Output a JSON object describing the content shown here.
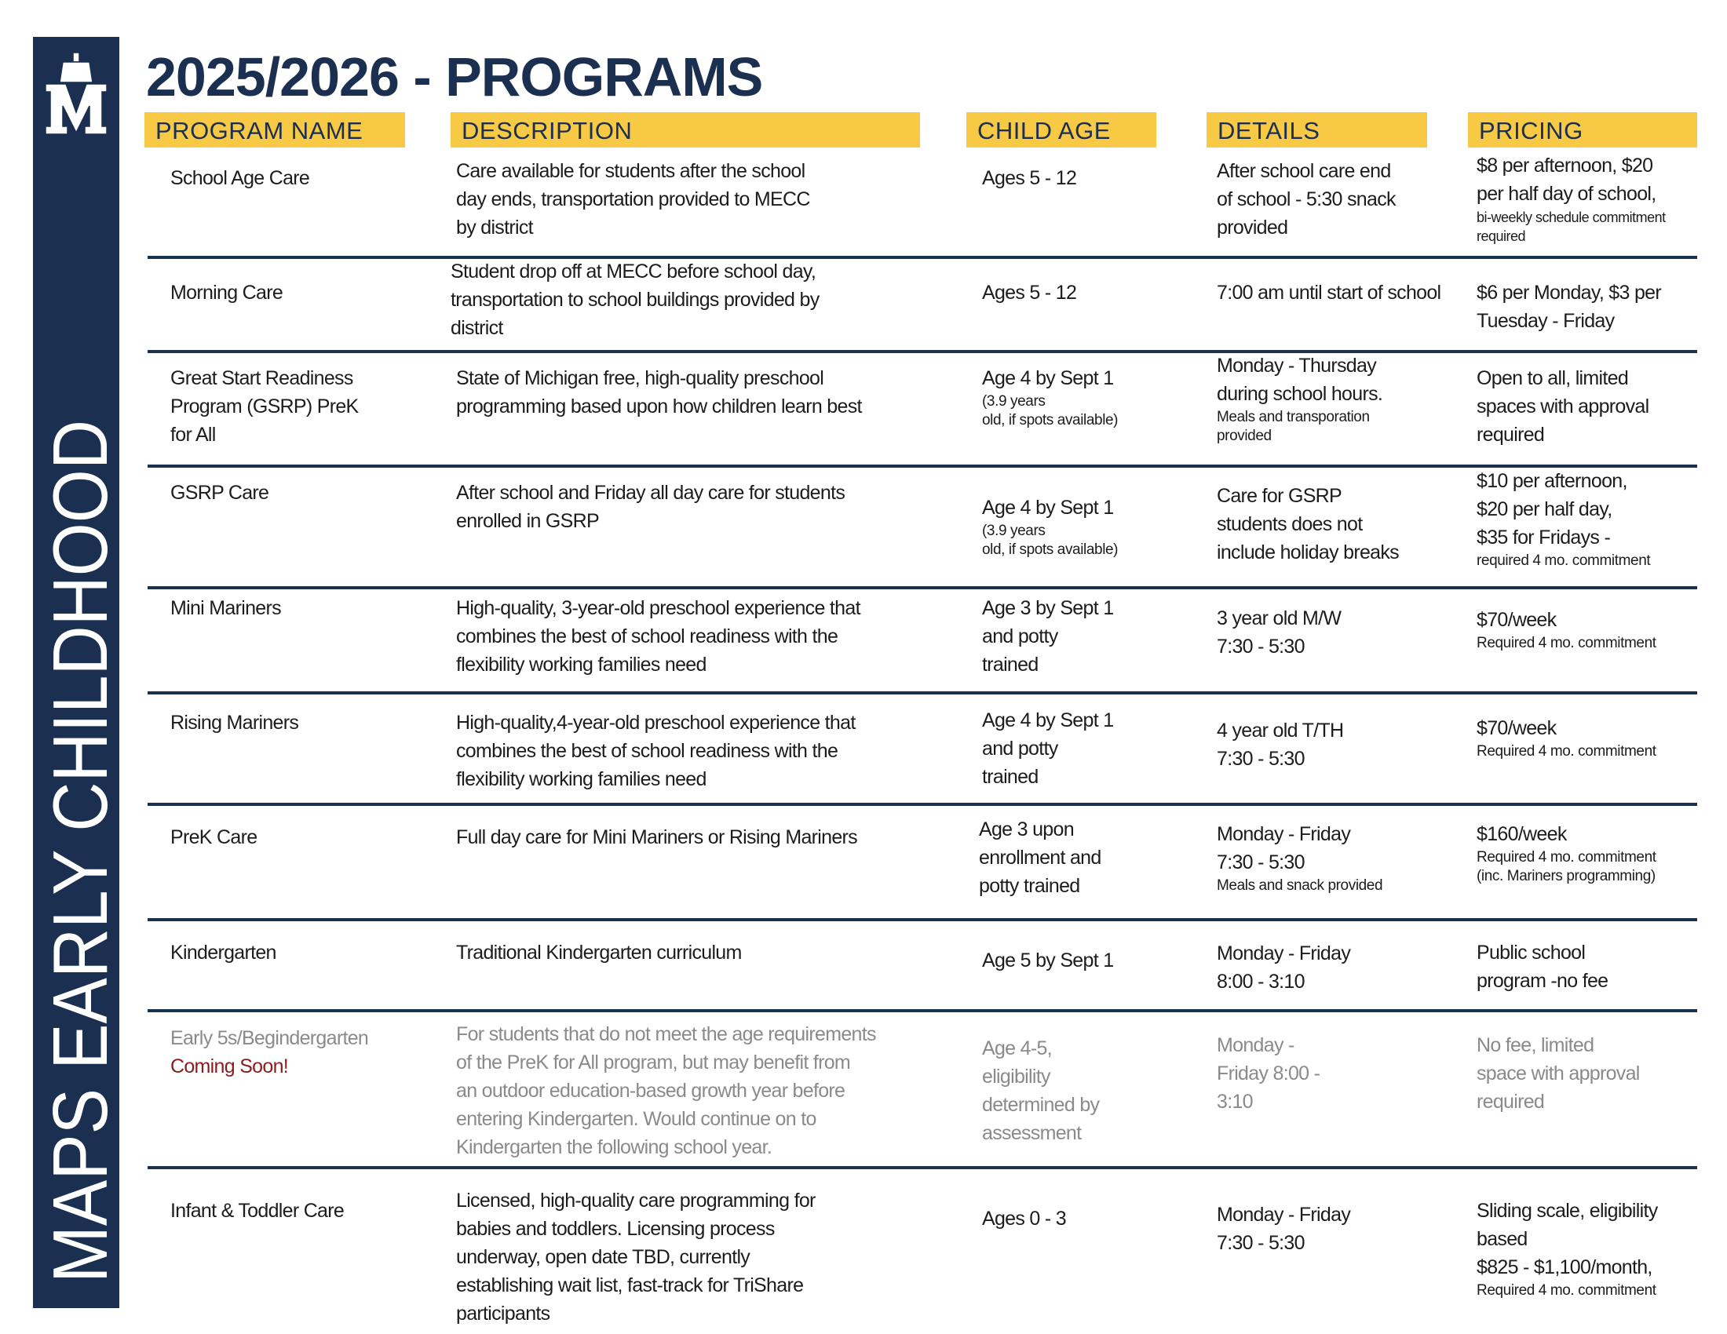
{
  "sidebar": {
    "vertical_title": "MAPS EARLY CHILDHOOD",
    "logo": "maps-mariners-m-ship-logo"
  },
  "title": "2025/2026 - PROGRAMS",
  "headers": [
    "PROGRAM NAME",
    "DESCRIPTION",
    "CHILD AGE",
    "DETAILS",
    "PRICING"
  ],
  "colors": {
    "navy": "#1b2f51",
    "gold": "#f8c945",
    "muted": "#8a8a8a",
    "coming_soon": "#8a1c1c"
  },
  "rows": [
    {
      "name": {
        "lines": [
          "School Age Care"
        ]
      },
      "desc": {
        "lines": [
          "Care available for students after the school",
          "day ends, transportation provided to MECC",
          "by district"
        ]
      },
      "age": {
        "lines": [
          "Ages 5 - 12"
        ]
      },
      "details": {
        "lines": [
          "After school care end",
          "of school - 5:30 snack",
          "provided"
        ]
      },
      "pricing": {
        "lines": [
          "$8 per afternoon, $20",
          "per half day of school,"
        ],
        "small": [
          "bi-weekly schedule commitment",
          "required"
        ]
      }
    },
    {
      "name": {
        "lines": [
          "Morning Care"
        ]
      },
      "desc": {
        "lines": [
          "Student drop off at MECC before school day,",
          "transportation to school buildings provided by",
          "district"
        ]
      },
      "age": {
        "lines": [
          "Ages 5 - 12"
        ]
      },
      "details": {
        "lines": [
          "7:00 am until start of school"
        ]
      },
      "pricing": {
        "lines": [
          "$6 per Monday, $3 per",
          "Tuesday - Friday"
        ]
      }
    },
    {
      "name": {
        "lines": [
          "Great Start Readiness",
          "Program (GSRP) PreK",
          "for All"
        ]
      },
      "desc": {
        "lines": [
          "State of Michigan free, high-quality preschool",
          "programming based upon how children learn best"
        ]
      },
      "age": {
        "lines": [
          "Age 4 by Sept 1"
        ],
        "small": [
          "(3.9 years",
          "old, if spots available)"
        ]
      },
      "details": {
        "lines": [
          "Monday - Thursday",
          "during school hours."
        ],
        "small": [
          "Meals and transporation",
          "provided"
        ]
      },
      "pricing": {
        "lines": [
          "Open to all, limited",
          "spaces with approval",
          "required"
        ]
      }
    },
    {
      "name": {
        "lines": [
          "GSRP Care"
        ]
      },
      "desc": {
        "lines": [
          "After school and Friday all day care for students",
          "enrolled in GSRP"
        ]
      },
      "age": {
        "lines": [
          "Age 4 by Sept 1"
        ],
        "small": [
          "(3.9 years",
          "old, if spots available)"
        ]
      },
      "details": {
        "lines": [
          "Care for GSRP",
          "students does not",
          "include holiday breaks"
        ]
      },
      "pricing": {
        "lines": [
          "$10 per afternoon,",
          "$20 per half day,",
          "$35 for Fridays -"
        ],
        "small": [
          "required 4 mo. commitment"
        ]
      }
    },
    {
      "name": {
        "lines": [
          "Mini Mariners"
        ]
      },
      "desc": {
        "lines": [
          "High-quality, 3-year-old preschool experience that",
          "combines the best of school readiness with the",
          "flexibility working families need"
        ]
      },
      "age": {
        "lines": [
          "Age 3 by Sept 1",
          "and potty",
          "trained"
        ]
      },
      "details": {
        "lines": [
          "3 year old M/W",
          "7:30 - 5:30"
        ]
      },
      "pricing": {
        "lines": [
          "$70/week"
        ],
        "small": [
          "Required 4 mo. commitment"
        ]
      }
    },
    {
      "name": {
        "lines": [
          "Rising Mariners"
        ]
      },
      "desc": {
        "lines": [
          "High-quality,4-year-old preschool experience that",
          "combines the best of school readiness with the",
          "flexibility working families need"
        ]
      },
      "age": {
        "lines": [
          "Age 4 by Sept 1",
          "and potty",
          "trained"
        ]
      },
      "details": {
        "lines": [
          "4 year old  T/TH",
          "7:30 - 5:30"
        ]
      },
      "pricing": {
        "lines": [
          "$70/week"
        ],
        "small": [
          "Required 4 mo. commitment"
        ]
      }
    },
    {
      "name": {
        "lines": [
          "PreK Care"
        ]
      },
      "desc": {
        "lines": [
          "Full day care for Mini Mariners or Rising Mariners"
        ]
      },
      "age": {
        "lines": [
          "Age 3 upon",
          "enrollment and",
          "potty trained"
        ]
      },
      "details": {
        "lines": [
          "Monday - Friday",
          "7:30 - 5:30"
        ],
        "small": [
          "Meals and snack provided"
        ]
      },
      "pricing": {
        "lines": [
          "$160/week"
        ],
        "small": [
          "Required 4 mo. commitment",
          "(inc. Mariners programming)"
        ]
      }
    },
    {
      "name": {
        "lines": [
          "Kindergarten"
        ]
      },
      "desc": {
        "lines": [
          "Traditional Kindergarten curriculum"
        ]
      },
      "age": {
        "lines": [
          "Age 5 by Sept 1"
        ]
      },
      "details": {
        "lines": [
          "Monday - Friday",
          "8:00 - 3:10"
        ]
      },
      "pricing": {
        "lines": [
          "Public school",
          "program -no fee"
        ]
      }
    },
    {
      "muted": true,
      "name": {
        "lines": [
          "Early 5s/Begindergarten"
        ],
        "highlight": "Coming Soon!"
      },
      "desc": {
        "lines": [
          "For students that do not meet the age requirements",
          "of the PreK for All program, but may benefit from",
          "an outdoor education-based growth year before",
          "entering Kindergarten. Would continue on to",
          "Kindergarten the following school year."
        ]
      },
      "age": {
        "lines": [
          "Age 4-5,",
          "eligibility",
          "determined by",
          "assessment"
        ]
      },
      "details": {
        "lines": [
          "Monday -",
          "Friday 8:00 -",
          "3:10"
        ]
      },
      "pricing": {
        "lines": [
          "No fee, limited",
          "space with approval",
          "required"
        ]
      }
    },
    {
      "name": {
        "lines": [
          "Infant & Toddler Care"
        ]
      },
      "desc": {
        "lines": [
          "Licensed, high-quality care programming for",
          "babies and toddlers. Licensing process",
          "underway, open date TBD, currently",
          "establishing wait list, fast-track for TriShare",
          "participants"
        ]
      },
      "age": {
        "lines": [
          "Ages 0 - 3"
        ]
      },
      "details": {
        "lines": [
          "Monday - Friday",
          "7:30 - 5:30"
        ]
      },
      "pricing": {
        "lines": [
          "Sliding scale, eligibility",
          "based",
          "$825 - $1,100/month,"
        ],
        "small": [
          "Required 4 mo. commitment"
        ]
      }
    }
  ]
}
